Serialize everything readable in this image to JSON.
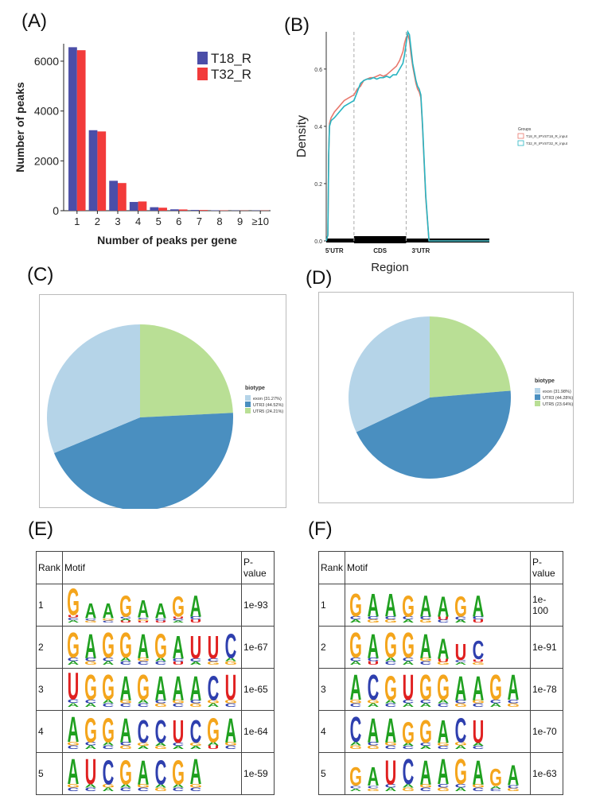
{
  "panels": {
    "A": "(A)",
    "B": "(B)",
    "C": "(C)",
    "D": "(D)",
    "E": "(E)",
    "F": "(F)"
  },
  "chart_data": [
    {
      "id": "A",
      "type": "bar",
      "xlabel": "Number of peaks per gene",
      "ylabel": "Number of peaks",
      "categories": [
        "1",
        "2",
        "3",
        "4",
        "5",
        "6",
        "7",
        "8",
        "9",
        "≥10"
      ],
      "ylim": [
        0,
        6700
      ],
      "yticks": [
        0,
        2000,
        4000,
        6000
      ],
      "legend_position": "top-right",
      "series": [
        {
          "name": "T18_R",
          "color": "#4b4ea8",
          "values": [
            6560,
            3230,
            1200,
            350,
            140,
            55,
            30,
            15,
            10,
            12
          ]
        },
        {
          "name": "T32_R",
          "color": "#f23b3b",
          "values": [
            6440,
            3180,
            1110,
            370,
            120,
            50,
            28,
            14,
            9,
            10
          ]
        }
      ]
    },
    {
      "id": "B",
      "type": "line",
      "xlabel": "Region",
      "ylabel": "Density",
      "yticks": [
        "0.0",
        "0.2",
        "0.4",
        "0.6"
      ],
      "ylim": [
        0,
        0.73
      ],
      "xlim": [
        0,
        100
      ],
      "region_labels": [
        {
          "text": "5'UTR",
          "x": 5
        },
        {
          "text": "CDS",
          "x": 33
        },
        {
          "text": "3'UTR",
          "x": 58
        }
      ],
      "boundaries": [
        17,
        49
      ],
      "legend_title": "Groups",
      "series": [
        {
          "name": "T18_R_IPVST18_R_input",
          "color": "#e8786d",
          "x": [
            0,
            1,
            1.5,
            2,
            3,
            5,
            8,
            11,
            14,
            17,
            19,
            21,
            23,
            25,
            27,
            29,
            31,
            33,
            35,
            37,
            39,
            41,
            43,
            45,
            47,
            48,
            49,
            50,
            51,
            52,
            53,
            54,
            55,
            56,
            57,
            58,
            59,
            61,
            63,
            70,
            100
          ],
          "y": [
            0,
            0.02,
            0.3,
            0.41,
            0.43,
            0.45,
            0.47,
            0.49,
            0.5,
            0.51,
            0.53,
            0.54,
            0.56,
            0.565,
            0.57,
            0.57,
            0.575,
            0.58,
            0.575,
            0.58,
            0.59,
            0.6,
            0.61,
            0.63,
            0.66,
            0.69,
            0.71,
            0.72,
            0.7,
            0.65,
            0.61,
            0.58,
            0.55,
            0.53,
            0.52,
            0.5,
            0.4,
            0.15,
            0,
            0,
            0
          ]
        },
        {
          "name": "T32_R_IPVST32_R_input",
          "color": "#27b4c1",
          "x": [
            0,
            1,
            1.5,
            2,
            3,
            5,
            8,
            11,
            14,
            17,
            19,
            21,
            23,
            25,
            27,
            29,
            31,
            33,
            35,
            37,
            39,
            41,
            43,
            45,
            47,
            48,
            49,
            50,
            51,
            52,
            53,
            54,
            55,
            56,
            57,
            58,
            59,
            61,
            63,
            70,
            100
          ],
          "y": [
            0,
            0.02,
            0.3,
            0.4,
            0.42,
            0.43,
            0.45,
            0.47,
            0.48,
            0.49,
            0.52,
            0.55,
            0.56,
            0.565,
            0.565,
            0.57,
            0.565,
            0.57,
            0.57,
            0.575,
            0.57,
            0.58,
            0.58,
            0.6,
            0.62,
            0.65,
            0.69,
            0.73,
            0.72,
            0.67,
            0.62,
            0.59,
            0.56,
            0.54,
            0.53,
            0.51,
            0.41,
            0.16,
            0,
            0,
            0
          ]
        }
      ]
    },
    {
      "id": "C",
      "type": "pie",
      "legend_title": "biotype",
      "legend_position": "right",
      "slices": [
        {
          "label": "exon (31.27%)",
          "value": 31.27,
          "color": "#b5d4e8"
        },
        {
          "label": "UTR3 (44.52%)",
          "value": 44.52,
          "color": "#4a8fc0"
        },
        {
          "label": "UTR5 (24.21%)",
          "value": 24.21,
          "color": "#b9df95"
        }
      ]
    },
    {
      "id": "D",
      "type": "pie",
      "legend_title": "biotype",
      "legend_position": "right",
      "slices": [
        {
          "label": "exon (31.98%)",
          "value": 31.98,
          "color": "#b5d4e8"
        },
        {
          "label": "UTR3 (44.28%)",
          "value": 44.28,
          "color": "#4a8fc0"
        },
        {
          "label": "UTR5 (23.64%)",
          "value": 23.64,
          "color": "#b9df95"
        }
      ]
    }
  ],
  "base_colors": {
    "A": "#1fa01f",
    "C": "#2e3fae",
    "G": "#f4a51c",
    "U": "#e02020"
  },
  "tables": [
    {
      "id": "E",
      "headers": [
        "Rank",
        "Motif",
        "P-\nvalue"
      ],
      "rows": [
        {
          "rank": "1",
          "pvalue": "1e-93",
          "motif": "GAAGAAGA",
          "stacks": [
            [
              "GUCA",
              1.0
            ],
            [
              "ACG",
              0.55
            ],
            [
              "AGC",
              0.55
            ],
            [
              "GCAU",
              0.8
            ],
            [
              "ACGU",
              0.65
            ],
            [
              "ACU",
              0.55
            ],
            [
              "GUCA",
              0.75
            ],
            [
              "ACU",
              0.8
            ]
          ]
        },
        {
          "rank": "2",
          "pvalue": "1e-67",
          "motif": "GAGGAGAUUC",
          "stacks": [
            [
              "GCA",
              0.95
            ],
            [
              "ACG",
              0.9
            ],
            [
              "GCA",
              0.95
            ],
            [
              "GAC",
              0.95
            ],
            [
              "AGC",
              0.9
            ],
            [
              "GAC",
              0.9
            ],
            [
              "ACU",
              0.85
            ],
            [
              "UCA",
              0.85
            ],
            [
              "UCG",
              0.85
            ],
            [
              "CAG",
              0.9
            ]
          ]
        },
        {
          "rank": "3",
          "pvalue": "1e-65",
          "motif": "UGGAGAAACU",
          "stacks": [
            [
              "UCA",
              1.0
            ],
            [
              "GCA",
              0.95
            ],
            [
              "GAC",
              0.95
            ],
            [
              "AGC",
              0.9
            ],
            [
              "GAC",
              0.95
            ],
            [
              "ACG",
              0.9
            ],
            [
              "AGC",
              0.9
            ],
            [
              "ACG",
              0.9
            ],
            [
              "CGA",
              0.9
            ],
            [
              "UGC",
              0.95
            ]
          ]
        },
        {
          "rank": "4",
          "pvalue": "1e-64",
          "motif": "AGGACCUCGA",
          "stacks": [
            [
              "AGC",
              0.95
            ],
            [
              "GCA",
              0.9
            ],
            [
              "GAC",
              0.9
            ],
            [
              "ACG",
              0.9
            ],
            [
              "CGA",
              0.85
            ],
            [
              "CAG",
              0.85
            ],
            [
              "UCA",
              0.85
            ],
            [
              "CGA",
              0.85
            ],
            [
              "GAU",
              0.9
            ],
            [
              "AGC",
              0.9
            ]
          ]
        },
        {
          "rank": "5",
          "pvalue": "1e-59",
          "motif": "AUCGACGA",
          "stacks": [
            [
              "AGC",
              0.95
            ],
            [
              "UAC",
              0.95
            ],
            [
              "CGA",
              0.9
            ],
            [
              "GAC",
              0.9
            ],
            [
              "AGC",
              0.9
            ],
            [
              "CAG",
              0.9
            ],
            [
              "GAC",
              0.9
            ],
            [
              "AGC",
              0.95
            ]
          ]
        }
      ]
    },
    {
      "id": "F",
      "headers": [
        "Rank",
        "Motif",
        "P-\nvalue"
      ],
      "rows": [
        {
          "rank": "1",
          "pvalue": "1e-\n100",
          "motif": "GAAGAAGA",
          "stacks": [
            [
              "GCA",
              0.85
            ],
            [
              "ACG",
              0.85
            ],
            [
              "ACG",
              0.85
            ],
            [
              "GCA",
              0.8
            ],
            [
              "ACG",
              0.8
            ],
            [
              "AUC",
              0.75
            ],
            [
              "GCA",
              0.75
            ],
            [
              "ACU",
              0.8
            ]
          ]
        },
        {
          "rank": "2",
          "pvalue": "1e-91",
          "motif": "GAGGAAUC",
          "stacks": [
            [
              "GCA",
              0.95
            ],
            [
              "ACU",
              0.9
            ],
            [
              "GAC",
              0.95
            ],
            [
              "GCA",
              0.95
            ],
            [
              "AGC",
              0.9
            ],
            [
              "AUG",
              0.75
            ],
            [
              "UCA",
              0.6
            ],
            [
              "CUG",
              0.7
            ]
          ]
        },
        {
          "rank": "3",
          "pvalue": "1e-78",
          "motif": "ACGUGGAAGA",
          "stacks": [
            [
              "AGC",
              0.95
            ],
            [
              "CGA",
              0.95
            ],
            [
              "GAC",
              0.9
            ],
            [
              "UCA",
              0.95
            ],
            [
              "GCA",
              0.95
            ],
            [
              "GAC",
              0.95
            ],
            [
              "ACG",
              0.9
            ],
            [
              "AGC",
              0.9
            ],
            [
              "GCA",
              0.95
            ],
            [
              "ACG",
              0.95
            ]
          ]
        },
        {
          "rank": "4",
          "pvalue": "1e-70",
          "motif": "CAAGGACU",
          "stacks": [
            [
              "CAG",
              0.95
            ],
            [
              "ACG",
              0.9
            ],
            [
              "AGC",
              0.9
            ],
            [
              "GAC",
              0.8
            ],
            [
              "GCA",
              0.85
            ],
            [
              "AGC",
              0.85
            ],
            [
              "CGA",
              0.9
            ],
            [
              "UAC",
              0.85
            ]
          ]
        },
        {
          "rank": "5",
          "pvalue": "1e-63",
          "motif": "GAUCAAGAGA",
          "stacks": [
            [
              "GCA",
              0.7
            ],
            [
              "ACG",
              0.7
            ],
            [
              "UCA",
              0.9
            ],
            [
              "CAG",
              0.95
            ],
            [
              "AGC",
              0.9
            ],
            [
              "ACG",
              0.95
            ],
            [
              "GCA",
              0.95
            ],
            [
              "AGC",
              0.9
            ],
            [
              "GAC",
              0.65
            ],
            [
              "ACG",
              0.75
            ]
          ]
        }
      ]
    }
  ]
}
